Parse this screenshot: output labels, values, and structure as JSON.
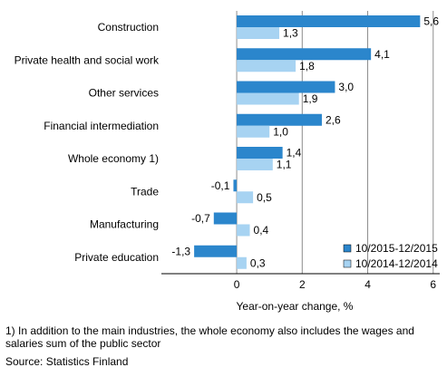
{
  "colors": {
    "series1": "#2b86cc",
    "series2": "#a7d3f2",
    "grid": "#8c8c8c",
    "axis": "#000000"
  },
  "chart_data": {
    "type": "bar",
    "orientation": "horizontal",
    "categories": [
      "Construction",
      "Private health and social work",
      "Other services",
      "Financial intermediation",
      "Whole economy 1)",
      "Trade",
      "Manufacturing",
      "Private education"
    ],
    "series": [
      {
        "name": "10/2015-12/2015",
        "values": [
          5.6,
          4.1,
          3.0,
          2.6,
          1.4,
          -0.1,
          -0.7,
          -1.3
        ],
        "labels": [
          "5,6",
          "4,1",
          "3,0",
          "2,6",
          "1,4",
          "-0,1",
          "-0,7",
          "-1,3"
        ]
      },
      {
        "name": "10/2014-12/2014",
        "values": [
          1.3,
          1.8,
          1.9,
          1.0,
          1.1,
          0.5,
          0.4,
          0.3
        ],
        "labels": [
          "1,3",
          "1,8",
          "1,9",
          "1,0",
          "1,1",
          "0,5",
          "0,4",
          "0,3"
        ]
      }
    ],
    "xlabel": "Year-on-year change, %",
    "xlim": [
      -2.3,
      6.2
    ],
    "xticks": [
      0,
      2,
      4,
      6
    ],
    "xtick_labels": [
      "0",
      "2",
      "4",
      "6"
    ],
    "grid": "vertical",
    "legend_position": "bottom-right"
  },
  "footnote": "1) In addition to the main industries, the whole economy also includes the wages and salaries sum of the public sector",
  "source": "Source: Statistics Finland"
}
